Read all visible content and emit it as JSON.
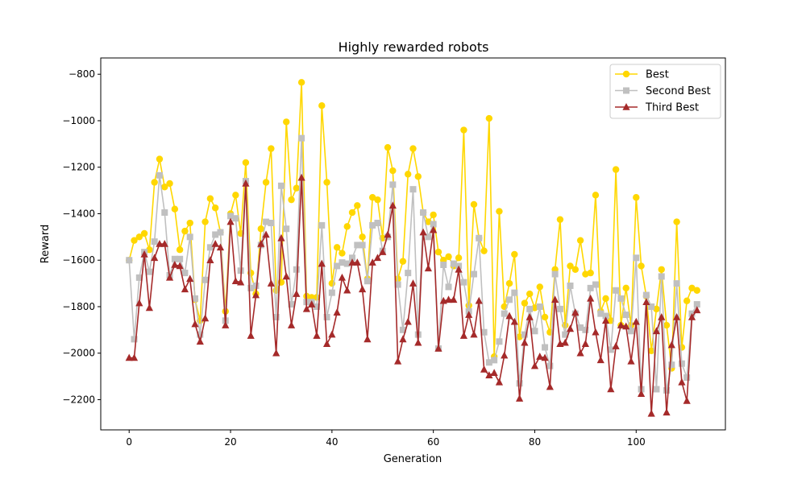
{
  "chart_data": {
    "type": "line",
    "title": "Highly rewarded robots",
    "xlabel": "Generation",
    "ylabel": "Reward",
    "xlim": [
      -5.6,
      117.6
    ],
    "ylim": [
      -2330,
      -730
    ],
    "xticks": [
      0,
      20,
      40,
      60,
      80,
      100
    ],
    "yticks": [
      -2200,
      -2000,
      -1800,
      -1600,
      -1400,
      -1200,
      -1000,
      -800
    ],
    "grid": false,
    "legend_position": "top-right",
    "series": [
      {
        "name": "Best",
        "color": "#ffd700",
        "marker": "circle",
        "values": [
          -1600,
          -1515,
          -1500,
          -1485,
          -1555,
          -1265,
          -1165,
          -1285,
          -1270,
          -1380,
          -1555,
          -1475,
          -1440,
          -1770,
          -1860,
          -1435,
          -1335,
          -1375,
          -1480,
          -1820,
          -1400,
          -1320,
          -1485,
          -1180,
          -1655,
          -1745,
          -1465,
          -1265,
          -1120,
          -1730,
          -1695,
          -1005,
          -1340,
          -1290,
          -835,
          -1755,
          -1760,
          -1760,
          -935,
          -1265,
          -1700,
          -1545,
          -1570,
          -1455,
          -1395,
          -1365,
          -1500,
          -1680,
          -1330,
          -1340,
          -1505,
          -1115,
          -1215,
          -1680,
          -1605,
          -1230,
          -1120,
          -1240,
          -1395,
          -1435,
          -1405,
          -1565,
          -1600,
          -1585,
          -1625,
          -1590,
          -1040,
          -1795,
          -1360,
          -1505,
          -1560,
          -990,
          -2015,
          -1390,
          -1800,
          -1700,
          -1575,
          -1930,
          -1785,
          -1745,
          -1805,
          -1715,
          -1845,
          -1910,
          -1640,
          -1425,
          -1880,
          -1625,
          -1640,
          -1515,
          -1660,
          -1655,
          -1320,
          -1820,
          -1765,
          -1860,
          -1210,
          -1880,
          -1720,
          -1880,
          -1330,
          -1625,
          -1755,
          -1990,
          -1810,
          -1640,
          -1880,
          -2065,
          -1435,
          -1975,
          -1775,
          -1720,
          -1730
        ]
      },
      {
        "name": "Second Best",
        "color": "#c0c0c0",
        "marker": "square",
        "values": [
          -1600,
          -1940,
          -1675,
          -1565,
          -1650,
          -1520,
          -1235,
          -1395,
          -1665,
          -1595,
          -1595,
          -1655,
          -1500,
          -1765,
          -1920,
          -1685,
          -1545,
          -1490,
          -1480,
          -1860,
          -1410,
          -1420,
          -1645,
          -1260,
          -1720,
          -1710,
          -1535,
          -1435,
          -1440,
          -1845,
          -1280,
          -1465,
          -1790,
          -1640,
          -1075,
          -1780,
          -1780,
          -1800,
          -1450,
          -1845,
          -1740,
          -1625,
          -1610,
          -1615,
          -1590,
          -1535,
          -1535,
          -1690,
          -1450,
          -1440,
          -1560,
          -1500,
          -1275,
          -1705,
          -1900,
          -1655,
          -1295,
          -1920,
          -1395,
          -1500,
          -1445,
          -1980,
          -1620,
          -1715,
          -1615,
          -1625,
          -1695,
          -1820,
          -1660,
          -1505,
          -1910,
          -2040,
          -2030,
          -1950,
          -1830,
          -1770,
          -1740,
          -2130,
          -1920,
          -1810,
          -1905,
          -1800,
          -1975,
          -2055,
          -1660,
          -1810,
          -1920,
          -1710,
          -1830,
          -1890,
          -1900,
          -1720,
          -1705,
          -1830,
          -1840,
          -1985,
          -1730,
          -1765,
          -1835,
          -1905,
          -1590,
          -2155,
          -1750,
          -1800,
          -2155,
          -1670,
          -2160,
          -2050,
          -1700,
          -2045,
          -2105,
          -1830,
          -1790
        ]
      },
      {
        "name": "Third Best",
        "color": "#a52a2a",
        "marker": "triangle",
        "values": [
          -2020,
          -2020,
          -1785,
          -1575,
          -1805,
          -1590,
          -1530,
          -1530,
          -1675,
          -1620,
          -1625,
          -1725,
          -1680,
          -1875,
          -1950,
          -1850,
          -1600,
          -1530,
          -1545,
          -1880,
          -1435,
          -1690,
          -1695,
          -1270,
          -1925,
          -1750,
          -1530,
          -1490,
          -1700,
          -2000,
          -1505,
          -1670,
          -1880,
          -1745,
          -1245,
          -1810,
          -1790,
          -1925,
          -1615,
          -1960,
          -1920,
          -1825,
          -1675,
          -1730,
          -1610,
          -1610,
          -1725,
          -1940,
          -1610,
          -1590,
          -1565,
          -1490,
          -1365,
          -2035,
          -1940,
          -1865,
          -1700,
          -1955,
          -1480,
          -1635,
          -1470,
          -1980,
          -1775,
          -1770,
          -1770,
          -1640,
          -1925,
          -1835,
          -1920,
          -1775,
          -2070,
          -2095,
          -2085,
          -2125,
          -2010,
          -1840,
          -1865,
          -2195,
          -1955,
          -1845,
          -2055,
          -2015,
          -2020,
          -2145,
          -1770,
          -1960,
          -1955,
          -1895,
          -1825,
          -2000,
          -1960,
          -1765,
          -1910,
          -2030,
          -1860,
          -2155,
          -1970,
          -1880,
          -1885,
          -2035,
          -1865,
          -2175,
          -1780,
          -2260,
          -1905,
          -1845,
          -2255,
          -1965,
          -1845,
          -2125,
          -2205,
          -1845,
          -1815
        ]
      }
    ]
  }
}
